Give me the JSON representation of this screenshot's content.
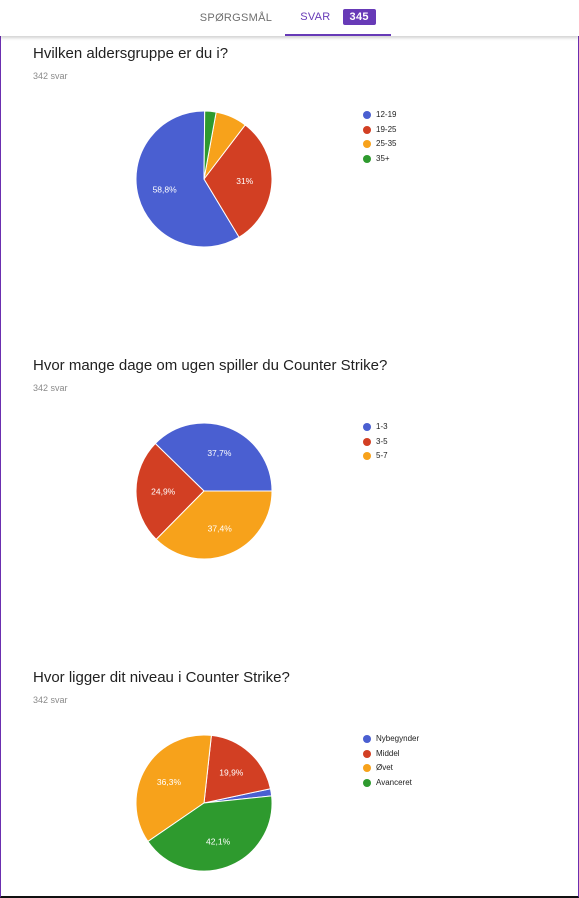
{
  "tabs": {
    "questions_label": "SPØRGSMÅL",
    "responses_label": "SVAR",
    "responses_count": "345"
  },
  "colors": {
    "accent": "#673ab7",
    "blue": "#4a5fd1",
    "red": "#d23f23",
    "orange": "#f7a21b",
    "green": "#2e9a2e"
  },
  "questions": [
    {
      "title": "Hvilken aldersgruppe er du i?",
      "count": "342 svar",
      "chart_data": {
        "type": "pie",
        "categories": [
          "12-19",
          "19-25",
          "25-35",
          "35+"
        ],
        "values": [
          58.8,
          31,
          7.5,
          2.7
        ],
        "labels": [
          "58,8%",
          "31%",
          "",
          ""
        ],
        "colors": [
          "#4a5fd1",
          "#d23f23",
          "#f7a21b",
          "#2e9a2e"
        ],
        "legend": "right"
      }
    },
    {
      "title": "Hvor mange dage om ugen spiller du Counter Strike?",
      "count": "342 svar",
      "chart_data": {
        "type": "pie",
        "categories": [
          "1-3",
          "3-5",
          "5-7"
        ],
        "values": [
          37.7,
          24.9,
          37.4
        ],
        "labels": [
          "37,7%",
          "24,9%",
          "37,4%"
        ],
        "colors": [
          "#4a5fd1",
          "#d23f23",
          "#f7a21b"
        ],
        "legend": "right"
      }
    },
    {
      "title": "Hvor ligger dit niveau i Counter Strike?",
      "count": "342 svar",
      "chart_data": {
        "type": "pie",
        "categories": [
          "Nybegynder",
          "Middel",
          "Øvet",
          "Avanceret"
        ],
        "values": [
          1.7,
          19.9,
          36.3,
          42.1
        ],
        "labels": [
          "",
          "19,9%",
          "36,3%",
          "42,1%"
        ],
        "colors": [
          "#4a5fd1",
          "#d23f23",
          "#f7a21b",
          "#2e9a2e"
        ],
        "legend": "right"
      }
    }
  ]
}
